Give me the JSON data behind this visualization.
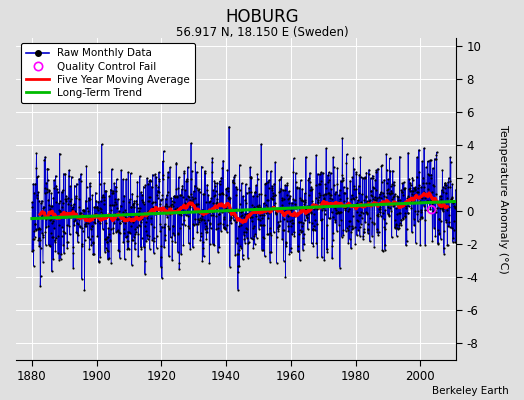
{
  "title": "HOBURG",
  "subtitle": "56.917 N, 18.150 E (Sweden)",
  "ylabel": "Temperature Anomaly (°C)",
  "watermark": "Berkeley Earth",
  "ylim": [
    -9,
    10.5
  ],
  "xlim": [
    1875,
    2011
  ],
  "xticks": [
    1880,
    1900,
    1920,
    1940,
    1960,
    1980,
    2000
  ],
  "yticks": [
    -8,
    -6,
    -4,
    -2,
    0,
    2,
    4,
    6,
    8,
    10
  ],
  "raw_color": "#0000cc",
  "moving_avg_color": "#ff0000",
  "trend_color": "#00bb00",
  "qc_color": "#ff00ff",
  "background_color": "#e0e0e0",
  "grid_color": "#ffffff",
  "start_year": 1880,
  "end_year": 2011,
  "seed": 123
}
